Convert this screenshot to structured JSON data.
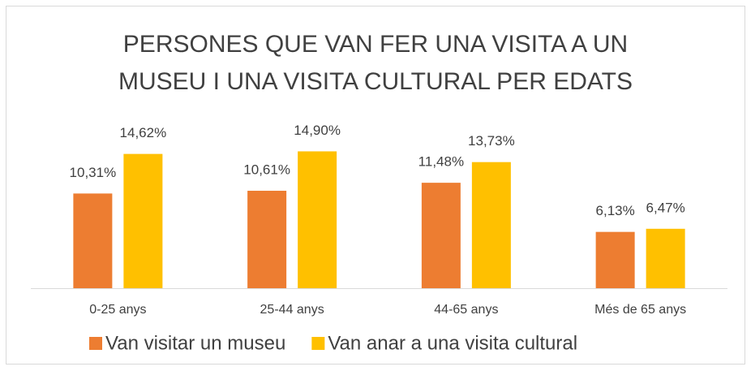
{
  "chart_data": {
    "type": "bar",
    "title": [
      "PERSONES QUE VAN FER UNA VISITA A UN",
      "MUSEU I UNA VISITA CULTURAL PER EDATS"
    ],
    "categories": [
      "0-25 anys",
      "25-44 anys",
      "44-65 anys",
      "Més de 65 anys"
    ],
    "series": [
      {
        "name": "Van visitar un museu",
        "color": "#ED7D31",
        "values": [
          10.31,
          10.61,
          11.48,
          6.13
        ],
        "value_labels": [
          "10,31%",
          "10,61%",
          "11,48%",
          "6,13%"
        ]
      },
      {
        "name": "Van anar a una visita cultural",
        "color": "#FFC000",
        "values": [
          14.62,
          14.9,
          13.73,
          6.47
        ],
        "value_labels": [
          "14,62%",
          "14,90%",
          "13,73%",
          "6,47%"
        ]
      }
    ],
    "ylim": [
      0,
      16
    ],
    "legend": "bottom"
  }
}
